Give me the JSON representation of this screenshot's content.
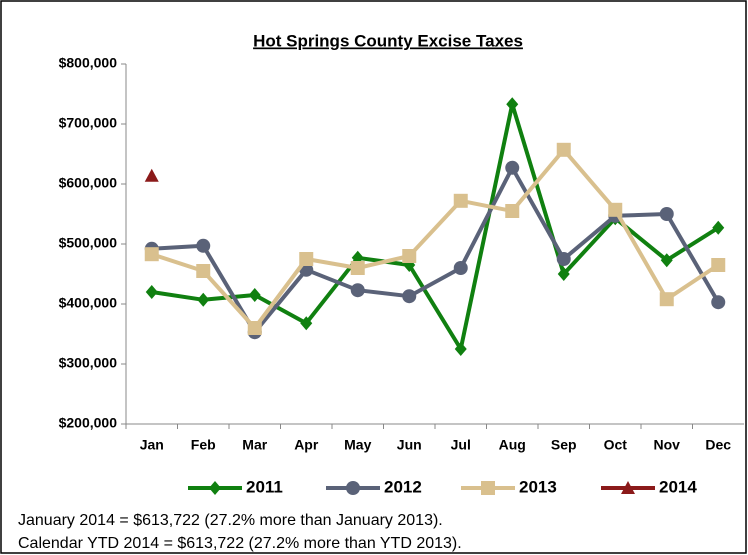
{
  "chart_data": {
    "type": "line",
    "title": "Hot Springs County Excise Taxes",
    "categories": [
      "Jan",
      "Feb",
      "Mar",
      "Apr",
      "May",
      "Jun",
      "Jul",
      "Aug",
      "Sep",
      "Oct",
      "Nov",
      "Dec"
    ],
    "series": [
      {
        "name": "2011",
        "color": "#108010",
        "marker": "diamond",
        "values": [
          420000,
          407000,
          415000,
          368000,
          477000,
          465000,
          325000,
          733000,
          450000,
          543000,
          473000,
          527000
        ]
      },
      {
        "name": "2012",
        "color": "#5a6278",
        "marker": "circle",
        "values": [
          492000,
          497000,
          353000,
          457000,
          423000,
          413000,
          460000,
          627000,
          475000,
          547000,
          550000,
          403000
        ]
      },
      {
        "name": "2013",
        "color": "#d9c08e",
        "marker": "square",
        "values": [
          483000,
          455000,
          360000,
          475000,
          460000,
          480000,
          572000,
          555000,
          657000,
          557000,
          408000,
          465000
        ]
      },
      {
        "name": "2014",
        "color": "#8b1a1a",
        "marker": "triangle",
        "values": [
          613722,
          null,
          null,
          null,
          null,
          null,
          null,
          null,
          null,
          null,
          null,
          null
        ]
      }
    ],
    "ylim": [
      200000,
      800000
    ],
    "yticks": [
      {
        "value": 200000,
        "label": "$200,000"
      },
      {
        "value": 300000,
        "label": "$300,000"
      },
      {
        "value": 400000,
        "label": "$400,000"
      },
      {
        "value": 500000,
        "label": "$500,000"
      },
      {
        "value": 600000,
        "label": "$600,000"
      },
      {
        "value": 700000,
        "label": "$700,000"
      },
      {
        "value": 800000,
        "label": "$800,000"
      }
    ],
    "grid": false,
    "legend": "bottom",
    "notes": [
      "January 2014 = $613,722 (27.2% more than January 2013).",
      "Calendar YTD 2014 = $613,722 (27.2% more than YTD 2013)."
    ]
  }
}
